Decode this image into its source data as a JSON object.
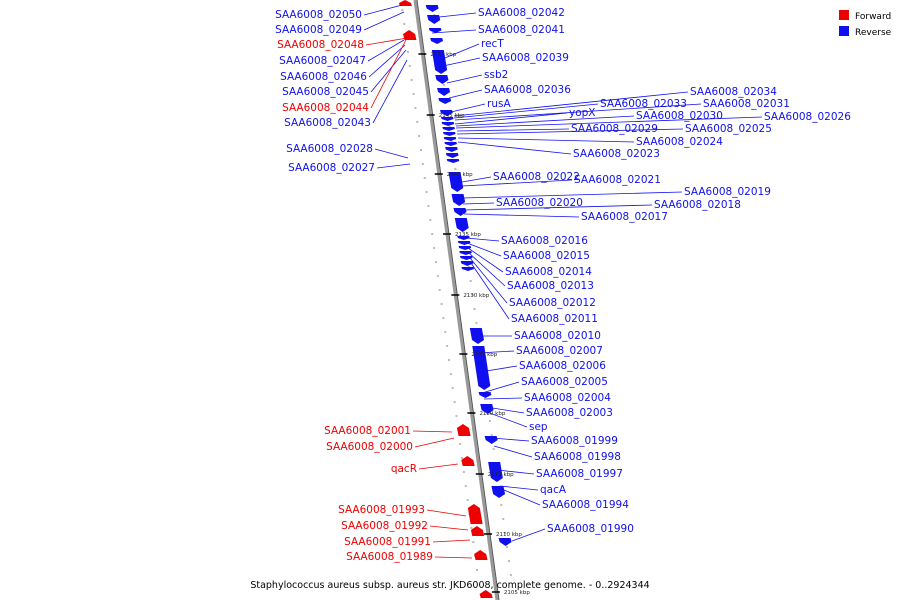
{
  "caption": "Staphylococcus aureus subsp. aureus str. JKD6008, complete genome. - 0..2924344",
  "legend": {
    "forward": {
      "label": "Forward",
      "color": "#ee0000"
    },
    "reverse": {
      "label": "Reverse",
      "color": "#1010ee"
    }
  },
  "colors": {
    "forward": "#ee0000",
    "reverse": "#1010ee",
    "axis": "#888888"
  },
  "kbp_markers": [
    "2150 kbp",
    "2145 kbp",
    "2140 kbp",
    "2135 kbp",
    "2130 kbp",
    "2125 kbp",
    "2120 kbp",
    "2115 kbp",
    "2110 kbp",
    "2105 kbp"
  ],
  "reverse_genes": [
    "SAA6008_02042",
    "SAA6008_02041",
    "recT",
    "SAA6008_02039",
    "ssb2",
    "SAA6008_02036",
    "rusA",
    "SAA6008_02034",
    "SAA6008_02033",
    "SAA6008_02031",
    "yopX",
    "SAA6008_02030",
    "SAA6008_02026",
    "SAA6008_02029",
    "SAA6008_02025",
    "SAA6008_02024",
    "SAA6008_02023",
    "SAA6008_02022",
    "SAA6008_02021",
    "SAA6008_02019",
    "SAA6008_02020",
    "SAA6008_02018",
    "SAA6008_02017",
    "SAA6008_02016",
    "SAA6008_02015",
    "SAA6008_02014",
    "SAA6008_02013",
    "SAA6008_02012",
    "SAA6008_02011",
    "SAA6008_02010",
    "SAA6008_02007",
    "SAA6008_02006",
    "SAA6008_02005",
    "SAA6008_02004",
    "SAA6008_02003",
    "sep",
    "SAA6008_01999",
    "SAA6008_01998",
    "SAA6008_01997",
    "qacA",
    "SAA6008_01994",
    "SAA6008_01990"
  ],
  "left_genes": [
    {
      "name": "SAA6008_02050",
      "strand": "reverse"
    },
    {
      "name": "SAA6008_02049",
      "strand": "reverse"
    },
    {
      "name": "SAA6008_02048",
      "strand": "forward"
    },
    {
      "name": "SAA6008_02047",
      "strand": "reverse"
    },
    {
      "name": "SAA6008_02046",
      "strand": "reverse"
    },
    {
      "name": "SAA6008_02045",
      "strand": "reverse"
    },
    {
      "name": "SAA6008_02044",
      "strand": "forward"
    },
    {
      "name": "SAA6008_02043",
      "strand": "reverse"
    },
    {
      "name": "SAA6008_02028",
      "strand": "reverse"
    },
    {
      "name": "SAA6008_02027",
      "strand": "reverse"
    },
    {
      "name": "SAA6008_02001",
      "strand": "forward"
    },
    {
      "name": "SAA6008_02000",
      "strand": "forward"
    },
    {
      "name": "qacR",
      "strand": "forward"
    },
    {
      "name": "SAA6008_01993",
      "strand": "forward"
    },
    {
      "name": "SAA6008_01992",
      "strand": "forward"
    },
    {
      "name": "SAA6008_01991",
      "strand": "forward"
    },
    {
      "name": "SAA6008_01989",
      "strand": "forward"
    }
  ]
}
